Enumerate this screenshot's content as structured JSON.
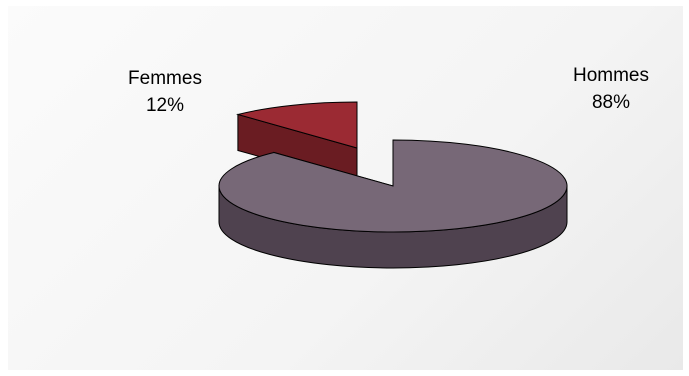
{
  "chart_data": {
    "type": "pie",
    "style": "3d-exploded",
    "title": "",
    "slices": [
      {
        "label": "Hommes",
        "percent_label": "88%",
        "value": 88,
        "color": "#776877",
        "side_color": "#4f424f"
      },
      {
        "label": "Femmes",
        "percent_label": "12%",
        "value": 12,
        "color": "#9b2a33",
        "side_color": "#6a1c22"
      }
    ],
    "legend": "none"
  }
}
